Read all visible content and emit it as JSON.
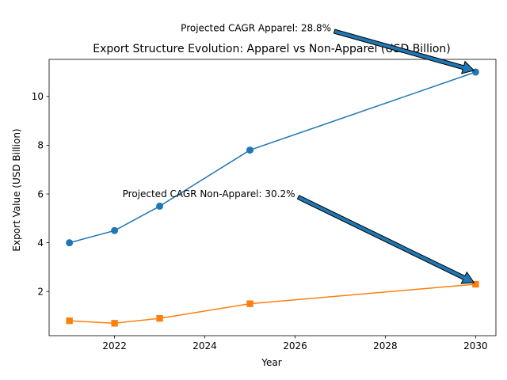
{
  "chart_data": {
    "type": "line",
    "title": "Export Structure Evolution: Apparel vs Non-Apparel (USD Billion)",
    "xlabel": "Year",
    "ylabel": "Export Value (USD Billion)",
    "xlim": [
      2020.55,
      2030.45
    ],
    "ylim": [
      0.19,
      11.52
    ],
    "xticks": [
      2022,
      2024,
      2026,
      2028,
      2030
    ],
    "yticks": [
      2,
      4,
      6,
      8,
      10
    ],
    "series": [
      {
        "name": "Apparel",
        "color": "#1f77b4",
        "marker": "circle",
        "x": [
          2021,
          2022,
          2023,
          2025,
          2030
        ],
        "y": [
          4.0,
          4.5,
          5.5,
          7.8,
          11.0
        ]
      },
      {
        "name": "Non-Apparel",
        "color": "#ff7f0e",
        "marker": "square",
        "x": [
          2021,
          2022,
          2023,
          2025,
          2030
        ],
        "y": [
          0.8,
          0.7,
          0.9,
          1.5,
          2.3
        ]
      }
    ],
    "annotations": [
      {
        "text": "Projected CAGR Apparel: 28.8%",
        "target_x": 2030,
        "target_y": 11.0,
        "text_x": 2026.8,
        "text_y": 12.8
      },
      {
        "text": "Projected CAGR Non-Apparel: 30.2%",
        "target_x": 2030,
        "target_y": 2.3,
        "text_x": 2026.0,
        "text_y": 6.0
      }
    ]
  }
}
